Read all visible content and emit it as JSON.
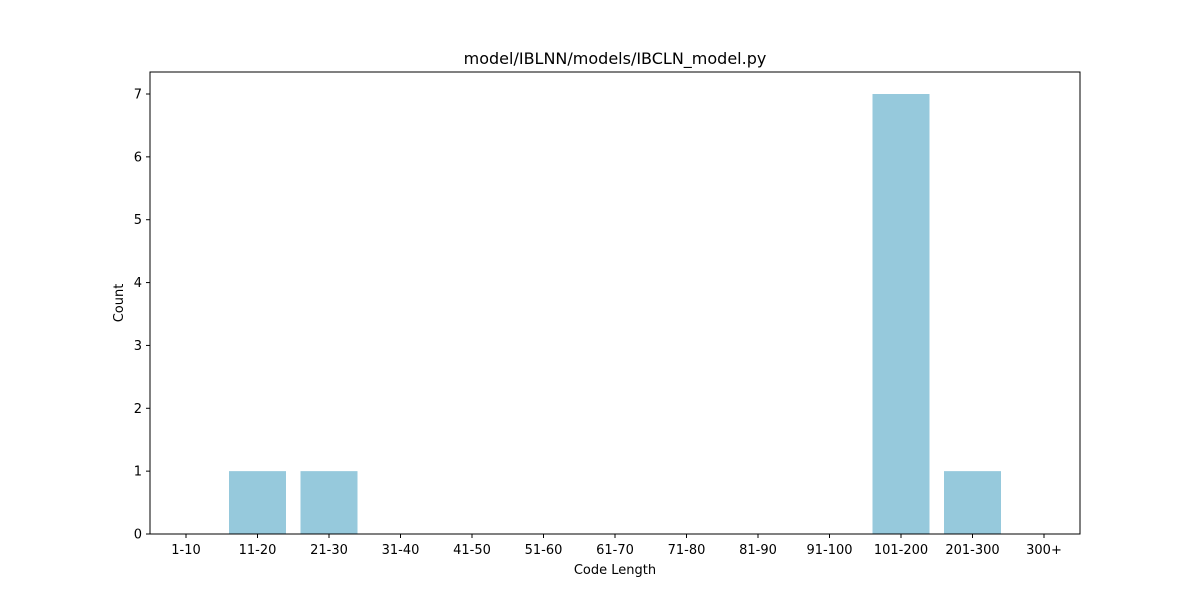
{
  "chart_data": {
    "type": "bar",
    "title": "model/IBLNN/models/IBCLN_model.py",
    "xlabel": "Code Length",
    "ylabel": "Count",
    "categories": [
      "1-10",
      "11-20",
      "21-30",
      "31-40",
      "41-50",
      "51-60",
      "61-70",
      "71-80",
      "81-90",
      "91-100",
      "101-200",
      "201-300",
      "300+"
    ],
    "values": [
      0,
      1,
      1,
      0,
      0,
      0,
      0,
      0,
      0,
      0,
      7,
      1,
      0
    ],
    "yticks": [
      "0",
      "1",
      "2",
      "3",
      "4",
      "5",
      "6",
      "7"
    ],
    "ylim": [
      0,
      7.35
    ],
    "bar_color": "#96c9dc",
    "grid": false,
    "legend": "none"
  }
}
